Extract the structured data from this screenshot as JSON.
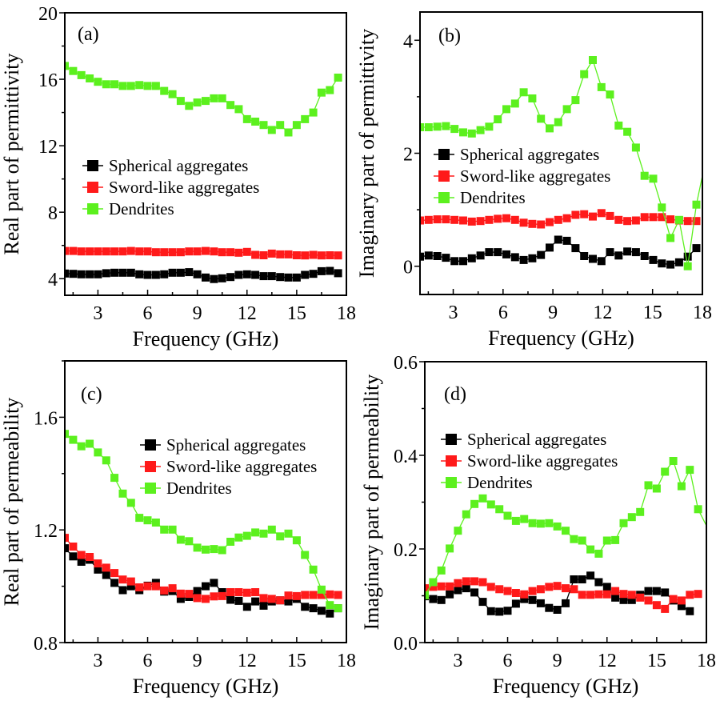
{
  "colors": {
    "spherical": "#000000",
    "sword": "#ff1a1a",
    "dendrites": "#5cf01e"
  },
  "chart_data": [
    {
      "id": "a",
      "type": "line",
      "panel_label": "(a)",
      "title": "",
      "xlabel": "Frequency (GHz)",
      "ylabel": "Real part of permittivity",
      "xlim": [
        1,
        18
      ],
      "ylim": [
        3,
        20
      ],
      "xticks": [
        3,
        6,
        9,
        12,
        15,
        18
      ],
      "xtick_labels": [
        "3",
        "6",
        "9",
        "12",
        "15",
        "18"
      ],
      "yticks": [
        4,
        8,
        12,
        16,
        20
      ],
      "ytick_labels": [
        "4",
        "8",
        "12",
        "16",
        "20"
      ],
      "legend": [
        "Spherical aggregates",
        "Sword-like aggregates",
        "Dendrites"
      ],
      "legend_position": "middle-left",
      "x_start": 1.0,
      "x_step": 0.5,
      "series": [
        {
          "name": "Spherical aggregates",
          "key": "spherical",
          "values": [
            4.31,
            4.29,
            4.26,
            4.26,
            4.26,
            4.33,
            4.36,
            4.36,
            4.36,
            4.26,
            4.23,
            4.23,
            4.26,
            4.36,
            4.36,
            4.39,
            4.26,
            4.07,
            3.98,
            4.02,
            4.1,
            4.23,
            4.26,
            4.23,
            4.15,
            4.15,
            4.1,
            4.07,
            4.07,
            4.23,
            4.29,
            4.45,
            4.47,
            4.33
          ]
        },
        {
          "name": "Sword-like aggregates",
          "key": "sword",
          "values": [
            5.67,
            5.67,
            5.64,
            5.64,
            5.64,
            5.64,
            5.64,
            5.64,
            5.67,
            5.64,
            5.64,
            5.59,
            5.59,
            5.59,
            5.59,
            5.64,
            5.64,
            5.67,
            5.64,
            5.59,
            5.59,
            5.56,
            5.61,
            5.43,
            5.41,
            5.51,
            5.46,
            5.46,
            5.41,
            5.4,
            5.43,
            5.4,
            5.41,
            5.4
          ]
        },
        {
          "name": "Dendrites",
          "key": "dendrites",
          "values": [
            16.8,
            16.5,
            16.25,
            16.05,
            15.85,
            15.7,
            15.7,
            15.6,
            15.6,
            15.65,
            15.6,
            15.6,
            15.3,
            15.1,
            14.7,
            14.4,
            14.6,
            14.7,
            14.85,
            14.85,
            14.45,
            14.2,
            13.6,
            13.45,
            13.25,
            12.95,
            13.25,
            12.8,
            13.25,
            13.6,
            14.0,
            15.2,
            15.35,
            16.1
          ]
        }
      ]
    },
    {
      "id": "b",
      "type": "line",
      "panel_label": "(b)",
      "title": "",
      "xlabel": "Frequency (GHz)",
      "ylabel": "Imaginary part of permittivity",
      "xlim": [
        1,
        18
      ],
      "ylim": [
        -0.5,
        4.5
      ],
      "xticks": [
        3,
        6,
        9,
        12,
        15,
        18
      ],
      "xtick_labels": [
        "3",
        "6",
        "9",
        "12",
        "15",
        "18"
      ],
      "yticks": [
        0,
        2,
        4
      ],
      "ytick_labels": [
        "0",
        "2",
        "4"
      ],
      "legend": [
        "Spherical aggregates",
        "Sword-like aggregates",
        "Dendrites"
      ],
      "legend_position": "middle-left",
      "x_start": 1.0,
      "x_step": 0.52,
      "series": [
        {
          "name": "Spherical aggregates",
          "key": "spherical",
          "values": [
            0.17,
            0.19,
            0.18,
            0.15,
            0.09,
            0.09,
            0.14,
            0.19,
            0.25,
            0.25,
            0.21,
            0.16,
            0.11,
            0.14,
            0.2,
            0.33,
            0.47,
            0.45,
            0.32,
            0.18,
            0.13,
            0.09,
            0.25,
            0.19,
            0.26,
            0.25,
            0.18,
            0.11,
            0.05,
            0.03,
            0.07,
            0.17,
            0.32
          ]
        },
        {
          "name": "Sword-like aggregates",
          "key": "sword",
          "values": [
            0.81,
            0.82,
            0.83,
            0.83,
            0.82,
            0.81,
            0.79,
            0.8,
            0.82,
            0.84,
            0.85,
            0.82,
            0.77,
            0.75,
            0.74,
            0.78,
            0.82,
            0.85,
            0.91,
            0.92,
            0.88,
            0.94,
            0.89,
            0.82,
            0.8,
            0.81,
            0.87,
            0.87,
            0.87,
            0.83,
            0.81,
            0.8,
            0.8
          ]
        },
        {
          "name": "Dendrites",
          "key": "dendrites",
          "values": [
            2.46,
            2.46,
            2.47,
            2.48,
            2.43,
            2.37,
            2.35,
            2.41,
            2.47,
            2.6,
            2.78,
            2.88,
            3.08,
            2.97,
            2.61,
            2.44,
            2.55,
            2.78,
            2.94,
            3.4,
            3.65,
            3.17,
            3.04,
            2.49,
            2.38,
            2.1,
            1.6,
            1.55,
            1.04,
            0.5,
            0.82,
            0.0,
            1.09
          ],
          "end_value": 1.6
        }
      ]
    },
    {
      "id": "c",
      "type": "line",
      "panel_label": "(c)",
      "title": "",
      "xlabel": "Frequency (GHz)",
      "ylabel": "Real part of permeability",
      "xlim": [
        1,
        18
      ],
      "ylim": [
        0.8,
        1.8
      ],
      "xticks": [
        3,
        6,
        9,
        12,
        15,
        18
      ],
      "xtick_labels": [
        "3",
        "6",
        "9",
        "12",
        "15",
        "18"
      ],
      "yticks": [
        0.8,
        1.2,
        1.6
      ],
      "ytick_labels": [
        "0.8",
        "1.2",
        "1.6"
      ],
      "legend": [
        "Spherical aggregates",
        "Sword-like aggregates",
        "Dendrites"
      ],
      "legend_position": "upper-right",
      "x_start": 1.0,
      "x_step": 0.5,
      "series": [
        {
          "name": "Spherical aggregates",
          "key": "spherical",
          "values": [
            1.135,
            1.106,
            1.087,
            1.094,
            1.059,
            1.04,
            1.012,
            0.986,
            1.0,
            0.986,
            1.002,
            1.012,
            0.981,
            0.983,
            0.955,
            0.962,
            0.983,
            1.0,
            1.012,
            0.979,
            0.952,
            0.948,
            0.927,
            0.946,
            0.931,
            0.946,
            0.95,
            0.946,
            0.955,
            0.927,
            0.922,
            0.913,
            0.903,
            0.922
          ]
        },
        {
          "name": "Sword-like aggregates",
          "key": "sword",
          "values": [
            1.172,
            1.141,
            1.111,
            1.104,
            1.081,
            1.066,
            1.047,
            1.024,
            1.017,
            0.996,
            1.0,
            1.0,
            0.985,
            0.993,
            0.974,
            0.973,
            0.958,
            0.955,
            0.964,
            0.965,
            0.979,
            0.979,
            0.977,
            0.979,
            0.958,
            0.955,
            0.95,
            0.967,
            0.965,
            0.969,
            0.969,
            0.969,
            0.971,
            0.969
          ]
        },
        {
          "name": "Dendrites",
          "key": "dendrites",
          "values": [
            1.541,
            1.52,
            1.497,
            1.506,
            1.475,
            1.447,
            1.385,
            1.329,
            1.296,
            1.243,
            1.234,
            1.226,
            1.201,
            1.201,
            1.165,
            1.16,
            1.137,
            1.13,
            1.132,
            1.128,
            1.158,
            1.173,
            1.179,
            1.191,
            1.187,
            1.201,
            1.177,
            1.187,
            1.163,
            1.111,
            1.059,
            0.988,
            0.933,
            0.922
          ]
        }
      ]
    },
    {
      "id": "d",
      "type": "line",
      "panel_label": "(d)",
      "title": "",
      "xlabel": "Frequency (GHz)",
      "ylabel": "Imaginary part of permeability",
      "xlim": [
        1,
        18
      ],
      "ylim": [
        0.0,
        0.6
      ],
      "xticks": [
        3,
        6,
        9,
        12,
        15,
        18
      ],
      "xtick_labels": [
        "3",
        "6",
        "9",
        "12",
        "15",
        "18"
      ],
      "yticks": [
        0.0,
        0.2,
        0.4,
        0.6
      ],
      "ytick_labels": [
        "0.0",
        "0.2",
        "0.4",
        "0.6"
      ],
      "legend": [
        "Spherical aggregates",
        "Sword-like aggregates",
        "Dendrites"
      ],
      "legend_position": "upper-left",
      "x_start": 1.0,
      "x_step": 0.5,
      "series": [
        {
          "name": "Spherical aggregates",
          "key": "spherical",
          "values": [
            0.099,
            0.093,
            0.091,
            0.103,
            0.112,
            0.116,
            0.107,
            0.087,
            0.067,
            0.066,
            0.068,
            0.083,
            0.093,
            0.091,
            0.084,
            0.074,
            0.07,
            0.084,
            0.135,
            0.135,
            0.143,
            0.129,
            0.119,
            0.096,
            0.091,
            0.091,
            0.102,
            0.11,
            0.11,
            0.107,
            0.09,
            0.078,
            0.067
          ]
        },
        {
          "name": "Sword-like aggregates",
          "key": "sword",
          "values": [
            0.116,
            0.119,
            0.12,
            0.12,
            0.127,
            0.131,
            0.131,
            0.129,
            0.119,
            0.114,
            0.11,
            0.106,
            0.103,
            0.11,
            0.114,
            0.119,
            0.121,
            0.116,
            0.114,
            0.102,
            0.102,
            0.103,
            0.103,
            0.11,
            0.104,
            0.102,
            0.096,
            0.09,
            0.08,
            0.072,
            0.093,
            0.09,
            0.102,
            0.104
          ]
        },
        {
          "name": "Dendrites",
          "key": "dendrites",
          "values": [
            0.101,
            0.129,
            0.154,
            0.201,
            0.239,
            0.274,
            0.296,
            0.308,
            0.295,
            0.285,
            0.271,
            0.26,
            0.264,
            0.255,
            0.254,
            0.255,
            0.248,
            0.239,
            0.221,
            0.218,
            0.199,
            0.19,
            0.218,
            0.219,
            0.255,
            0.268,
            0.279,
            0.336,
            0.329,
            0.365,
            0.388,
            0.334,
            0.369,
            0.285
          ],
          "end_value": 0.25
        }
      ]
    }
  ]
}
